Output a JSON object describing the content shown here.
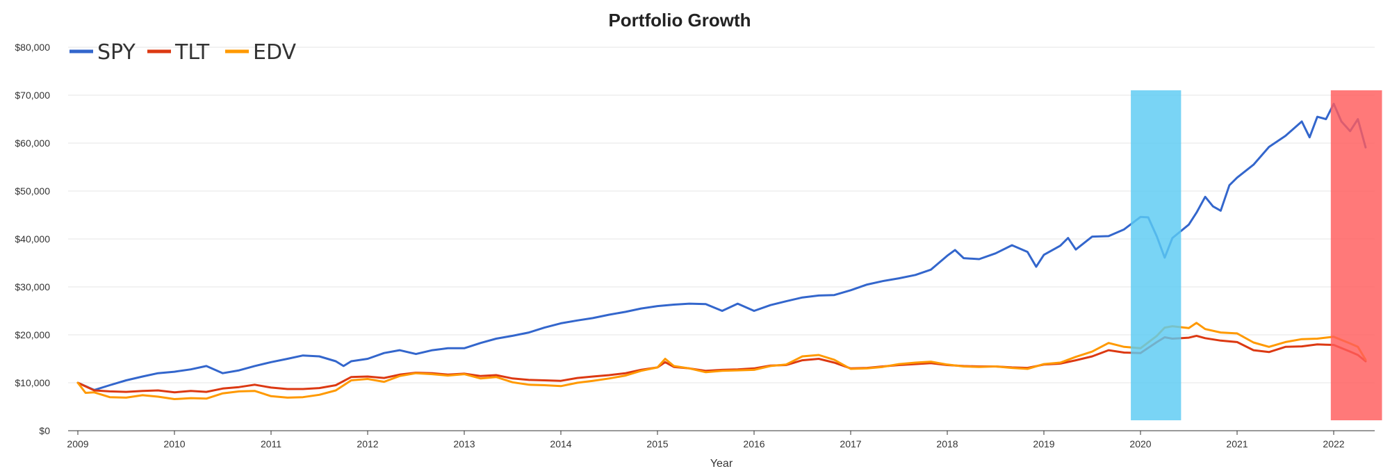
{
  "chart_data": {
    "type": "line",
    "title": "Portfolio Growth",
    "xlabel": "Year",
    "ylabel": "",
    "ylim": [
      0,
      80000
    ],
    "xlim": [
      2009.0,
      2022.6
    ],
    "y_ticks": [
      "$0",
      "$10,000",
      "$20,000",
      "$30,000",
      "$40,000",
      "$50,000",
      "$60,000",
      "$70,000",
      "$80,000"
    ],
    "x_ticks": [
      "2009",
      "2010",
      "2011",
      "2012",
      "2013",
      "2014",
      "2015",
      "2016",
      "2017",
      "2018",
      "2019",
      "2020",
      "2021",
      "2022"
    ],
    "grid": "horizontal",
    "legend_position": "top-left",
    "highlights": [
      {
        "x_start": 2019.9,
        "x_end": 2020.42,
        "color": "#5ccbf3"
      },
      {
        "x_start": 2021.97,
        "x_end": 2022.5,
        "color": "#ff5c5c"
      }
    ],
    "series": [
      {
        "name": "SPY",
        "color": "#3366cc",
        "points": [
          [
            2009.0,
            10000
          ],
          [
            2009.17,
            8500
          ],
          [
            2009.33,
            9500
          ],
          [
            2009.5,
            10500
          ],
          [
            2009.67,
            11300
          ],
          [
            2009.83,
            12000
          ],
          [
            2010.0,
            12300
          ],
          [
            2010.17,
            12800
          ],
          [
            2010.33,
            13500
          ],
          [
            2010.5,
            12000
          ],
          [
            2010.67,
            12600
          ],
          [
            2010.83,
            13500
          ],
          [
            2011.0,
            14300
          ],
          [
            2011.17,
            15000
          ],
          [
            2011.33,
            15700
          ],
          [
            2011.5,
            15500
          ],
          [
            2011.67,
            14500
          ],
          [
            2011.75,
            13500
          ],
          [
            2011.83,
            14500
          ],
          [
            2012.0,
            15000
          ],
          [
            2012.17,
            16200
          ],
          [
            2012.33,
            16800
          ],
          [
            2012.5,
            16000
          ],
          [
            2012.67,
            16800
          ],
          [
            2012.83,
            17200
          ],
          [
            2013.0,
            17200
          ],
          [
            2013.17,
            18300
          ],
          [
            2013.33,
            19200
          ],
          [
            2013.5,
            19800
          ],
          [
            2013.67,
            20500
          ],
          [
            2013.83,
            21500
          ],
          [
            2014.0,
            22400
          ],
          [
            2014.17,
            23000
          ],
          [
            2014.33,
            23500
          ],
          [
            2014.5,
            24200
          ],
          [
            2014.67,
            24800
          ],
          [
            2014.83,
            25500
          ],
          [
            2015.0,
            26000
          ],
          [
            2015.17,
            26300
          ],
          [
            2015.33,
            26500
          ],
          [
            2015.5,
            26400
          ],
          [
            2015.67,
            25000
          ],
          [
            2015.83,
            26500
          ],
          [
            2016.0,
            25000
          ],
          [
            2016.17,
            26200
          ],
          [
            2016.33,
            27000
          ],
          [
            2016.5,
            27800
          ],
          [
            2016.67,
            28200
          ],
          [
            2016.83,
            28300
          ],
          [
            2017.0,
            29300
          ],
          [
            2017.17,
            30500
          ],
          [
            2017.33,
            31200
          ],
          [
            2017.5,
            31800
          ],
          [
            2017.67,
            32500
          ],
          [
            2017.83,
            33600
          ],
          [
            2018.0,
            36500
          ],
          [
            2018.08,
            37700
          ],
          [
            2018.17,
            36000
          ],
          [
            2018.33,
            35800
          ],
          [
            2018.5,
            37000
          ],
          [
            2018.67,
            38700
          ],
          [
            2018.83,
            37300
          ],
          [
            2018.92,
            34200
          ],
          [
            2019.0,
            36700
          ],
          [
            2019.17,
            38600
          ],
          [
            2019.25,
            40200
          ],
          [
            2019.33,
            37800
          ],
          [
            2019.5,
            40500
          ],
          [
            2019.67,
            40600
          ],
          [
            2019.83,
            42000
          ],
          [
            2020.0,
            44600
          ],
          [
            2020.08,
            44500
          ],
          [
            2020.17,
            40500
          ],
          [
            2020.25,
            36100
          ],
          [
            2020.33,
            40200
          ],
          [
            2020.5,
            43000
          ],
          [
            2020.58,
            45500
          ],
          [
            2020.67,
            48800
          ],
          [
            2020.75,
            46800
          ],
          [
            2020.83,
            45900
          ],
          [
            2020.92,
            51200
          ],
          [
            2021.0,
            52800
          ],
          [
            2021.17,
            55500
          ],
          [
            2021.33,
            59200
          ],
          [
            2021.5,
            61500
          ],
          [
            2021.67,
            64500
          ],
          [
            2021.75,
            61200
          ],
          [
            2021.83,
            65500
          ],
          [
            2021.92,
            65000
          ],
          [
            2022.0,
            68200
          ],
          [
            2022.08,
            64500
          ],
          [
            2022.17,
            62500
          ],
          [
            2022.25,
            65000
          ],
          [
            2022.33,
            59100
          ]
        ]
      },
      {
        "name": "TLT",
        "color": "#dc3912",
        "points": [
          [
            2009.0,
            10000
          ],
          [
            2009.17,
            8400
          ],
          [
            2009.33,
            8200
          ],
          [
            2009.5,
            8100
          ],
          [
            2009.67,
            8300
          ],
          [
            2009.83,
            8400
          ],
          [
            2010.0,
            8000
          ],
          [
            2010.17,
            8300
          ],
          [
            2010.33,
            8100
          ],
          [
            2010.5,
            8800
          ],
          [
            2010.67,
            9100
          ],
          [
            2010.83,
            9600
          ],
          [
            2011.0,
            9000
          ],
          [
            2011.17,
            8700
          ],
          [
            2011.33,
            8700
          ],
          [
            2011.5,
            8900
          ],
          [
            2011.67,
            9500
          ],
          [
            2011.83,
            11200
          ],
          [
            2012.0,
            11300
          ],
          [
            2012.17,
            11000
          ],
          [
            2012.33,
            11700
          ],
          [
            2012.5,
            12100
          ],
          [
            2012.67,
            12000
          ],
          [
            2012.83,
            11700
          ],
          [
            2013.0,
            11900
          ],
          [
            2013.17,
            11400
          ],
          [
            2013.33,
            11600
          ],
          [
            2013.5,
            10900
          ],
          [
            2013.67,
            10600
          ],
          [
            2013.83,
            10500
          ],
          [
            2014.0,
            10400
          ],
          [
            2014.17,
            11000
          ],
          [
            2014.33,
            11300
          ],
          [
            2014.5,
            11600
          ],
          [
            2014.67,
            12000
          ],
          [
            2014.83,
            12700
          ],
          [
            2015.0,
            13200
          ],
          [
            2015.08,
            14300
          ],
          [
            2015.17,
            13300
          ],
          [
            2015.33,
            13000
          ],
          [
            2015.5,
            12500
          ],
          [
            2015.67,
            12700
          ],
          [
            2015.83,
            12800
          ],
          [
            2016.0,
            13000
          ],
          [
            2016.17,
            13600
          ],
          [
            2016.33,
            13700
          ],
          [
            2016.5,
            14700
          ],
          [
            2016.67,
            15000
          ],
          [
            2016.83,
            14200
          ],
          [
            2017.0,
            13000
          ],
          [
            2017.17,
            13100
          ],
          [
            2017.33,
            13400
          ],
          [
            2017.5,
            13700
          ],
          [
            2017.67,
            13900
          ],
          [
            2017.83,
            14100
          ],
          [
            2018.0,
            13700
          ],
          [
            2018.17,
            13500
          ],
          [
            2018.33,
            13400
          ],
          [
            2018.5,
            13400
          ],
          [
            2018.67,
            13200
          ],
          [
            2018.83,
            13100
          ],
          [
            2019.0,
            13800
          ],
          [
            2019.17,
            14000
          ],
          [
            2019.33,
            14700
          ],
          [
            2019.5,
            15500
          ],
          [
            2019.67,
            16800
          ],
          [
            2019.83,
            16300
          ],
          [
            2020.0,
            16200
          ],
          [
            2020.17,
            18500
          ],
          [
            2020.25,
            19500
          ],
          [
            2020.33,
            19200
          ],
          [
            2020.5,
            19400
          ],
          [
            2020.58,
            19800
          ],
          [
            2020.67,
            19300
          ],
          [
            2020.83,
            18800
          ],
          [
            2021.0,
            18500
          ],
          [
            2021.17,
            16800
          ],
          [
            2021.33,
            16400
          ],
          [
            2021.5,
            17500
          ],
          [
            2021.67,
            17600
          ],
          [
            2021.83,
            18000
          ],
          [
            2022.0,
            17900
          ],
          [
            2022.17,
            16500
          ],
          [
            2022.25,
            15800
          ],
          [
            2022.33,
            14500
          ]
        ]
      },
      {
        "name": "EDV",
        "color": "#ff9900",
        "points": [
          [
            2009.0,
            10000
          ],
          [
            2009.08,
            7900
          ],
          [
            2009.17,
            8000
          ],
          [
            2009.33,
            7000
          ],
          [
            2009.5,
            6900
          ],
          [
            2009.67,
            7400
          ],
          [
            2009.83,
            7100
          ],
          [
            2010.0,
            6600
          ],
          [
            2010.17,
            6800
          ],
          [
            2010.33,
            6700
          ],
          [
            2010.5,
            7800
          ],
          [
            2010.67,
            8200
          ],
          [
            2010.83,
            8300
          ],
          [
            2011.0,
            7200
          ],
          [
            2011.17,
            6900
          ],
          [
            2011.33,
            7000
          ],
          [
            2011.5,
            7500
          ],
          [
            2011.67,
            8400
          ],
          [
            2011.83,
            10500
          ],
          [
            2012.0,
            10800
          ],
          [
            2012.17,
            10200
          ],
          [
            2012.33,
            11400
          ],
          [
            2012.5,
            12000
          ],
          [
            2012.67,
            11800
          ],
          [
            2012.83,
            11500
          ],
          [
            2013.0,
            11800
          ],
          [
            2013.17,
            10900
          ],
          [
            2013.33,
            11200
          ],
          [
            2013.5,
            10100
          ],
          [
            2013.67,
            9600
          ],
          [
            2013.83,
            9500
          ],
          [
            2014.0,
            9300
          ],
          [
            2014.17,
            10000
          ],
          [
            2014.33,
            10400
          ],
          [
            2014.5,
            10900
          ],
          [
            2014.67,
            11500
          ],
          [
            2014.83,
            12500
          ],
          [
            2015.0,
            13200
          ],
          [
            2015.08,
            15000
          ],
          [
            2015.17,
            13500
          ],
          [
            2015.33,
            13000
          ],
          [
            2015.5,
            12200
          ],
          [
            2015.67,
            12500
          ],
          [
            2015.83,
            12600
          ],
          [
            2016.0,
            12700
          ],
          [
            2016.17,
            13500
          ],
          [
            2016.33,
            13800
          ],
          [
            2016.5,
            15500
          ],
          [
            2016.67,
            15800
          ],
          [
            2016.83,
            14800
          ],
          [
            2017.0,
            12900
          ],
          [
            2017.17,
            13000
          ],
          [
            2017.33,
            13300
          ],
          [
            2017.5,
            13900
          ],
          [
            2017.67,
            14200
          ],
          [
            2017.83,
            14400
          ],
          [
            2018.0,
            13800
          ],
          [
            2018.17,
            13400
          ],
          [
            2018.33,
            13300
          ],
          [
            2018.5,
            13400
          ],
          [
            2018.67,
            13100
          ],
          [
            2018.83,
            12900
          ],
          [
            2019.0,
            13900
          ],
          [
            2019.17,
            14200
          ],
          [
            2019.33,
            15400
          ],
          [
            2019.5,
            16500
          ],
          [
            2019.67,
            18300
          ],
          [
            2019.83,
            17500
          ],
          [
            2020.0,
            17200
          ],
          [
            2020.17,
            19800
          ],
          [
            2020.25,
            21500
          ],
          [
            2020.33,
            21800
          ],
          [
            2020.5,
            21400
          ],
          [
            2020.58,
            22500
          ],
          [
            2020.67,
            21200
          ],
          [
            2020.83,
            20500
          ],
          [
            2021.0,
            20300
          ],
          [
            2021.17,
            18400
          ],
          [
            2021.33,
            17500
          ],
          [
            2021.5,
            18500
          ],
          [
            2021.67,
            19100
          ],
          [
            2021.83,
            19200
          ],
          [
            2022.0,
            19600
          ],
          [
            2022.17,
            18200
          ],
          [
            2022.25,
            17500
          ],
          [
            2022.33,
            14800
          ]
        ]
      }
    ]
  }
}
